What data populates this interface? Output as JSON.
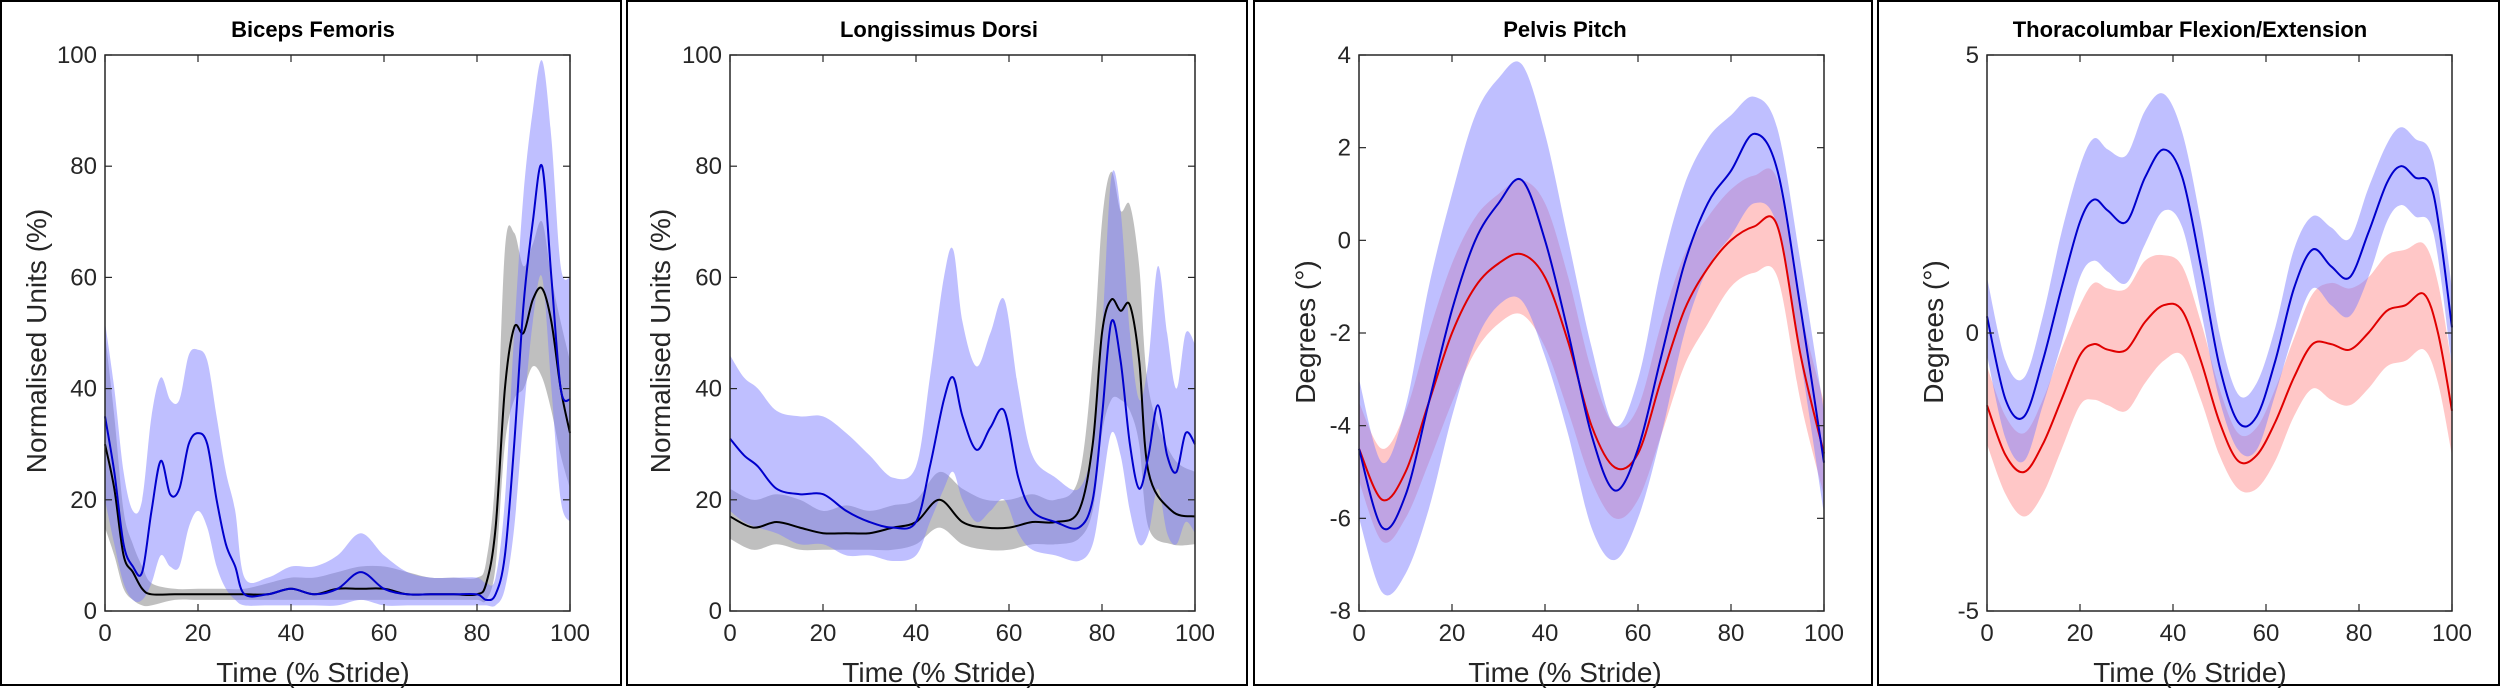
{
  "chart_data": [
    {
      "type": "line",
      "title": "Biceps Femoris",
      "xlabel": "Time (% Stride)",
      "ylabel": "Normalised Units (%)",
      "xlim": [
        0,
        100
      ],
      "ylim": [
        0,
        100
      ],
      "xticks": [
        0,
        20,
        40,
        60,
        80,
        100
      ],
      "yticks": [
        0,
        20,
        40,
        60,
        80,
        100
      ],
      "series": [
        {
          "name": "gray",
          "color": "#000000",
          "band_color": "#808080",
          "x": [
            0,
            2,
            4,
            6,
            8,
            10,
            15,
            20,
            25,
            30,
            35,
            40,
            45,
            50,
            55,
            60,
            65,
            70,
            75,
            80,
            82,
            84,
            86,
            88,
            90,
            92,
            94,
            96,
            98,
            100
          ],
          "mean": [
            30,
            22,
            10,
            7,
            4,
            3,
            3,
            3,
            3,
            3,
            3,
            4,
            3,
            4,
            4,
            4,
            3,
            3,
            3,
            3,
            5,
            15,
            40,
            51,
            50,
            56,
            58,
            52,
            40,
            32
          ],
          "upper": [
            50,
            35,
            18,
            12,
            8,
            5,
            4,
            4,
            4,
            4,
            5,
            6,
            6,
            7,
            8,
            8,
            7,
            6,
            6,
            6,
            9,
            25,
            65,
            68,
            62,
            66,
            70,
            60,
            52,
            45
          ],
          "lower": [
            15,
            10,
            4,
            2,
            1,
            1,
            2,
            2,
            2,
            2,
            2,
            2,
            2,
            2,
            2,
            2,
            2,
            2,
            2,
            2,
            2,
            8,
            30,
            38,
            40,
            44,
            42,
            36,
            28,
            22
          ]
        },
        {
          "name": "blue",
          "color": "#0000cc",
          "band_color": "#8080ff",
          "x": [
            0,
            2,
            4,
            6,
            8,
            10,
            12,
            14,
            16,
            18,
            20,
            22,
            24,
            26,
            28,
            30,
            35,
            40,
            45,
            50,
            55,
            60,
            65,
            70,
            75,
            80,
            82,
            84,
            86,
            88,
            90,
            92,
            94,
            96,
            98,
            100
          ],
          "mean": [
            35,
            25,
            12,
            8,
            7,
            18,
            27,
            21,
            22,
            30,
            32,
            30,
            20,
            12,
            8,
            3,
            3,
            4,
            3,
            4,
            7,
            4,
            3,
            3,
            3,
            3,
            2,
            3,
            10,
            30,
            55,
            70,
            80,
            60,
            40,
            38
          ],
          "upper": [
            52,
            40,
            25,
            18,
            20,
            35,
            42,
            38,
            38,
            46,
            47,
            45,
            35,
            25,
            18,
            6,
            6,
            8,
            8,
            10,
            14,
            10,
            7,
            6,
            6,
            6,
            5,
            6,
            20,
            50,
            75,
            90,
            99,
            85,
            62,
            60
          ],
          "lower": [
            20,
            12,
            5,
            2,
            2,
            5,
            10,
            8,
            8,
            15,
            18,
            15,
            8,
            4,
            2,
            1,
            1,
            1,
            1,
            1,
            2,
            1,
            1,
            1,
            1,
            1,
            1,
            1,
            4,
            15,
            35,
            52,
            60,
            40,
            20,
            16
          ]
        }
      ]
    },
    {
      "type": "line",
      "title": "Longissimus Dorsi",
      "xlabel": "Time (% Stride)",
      "ylabel": "Normalised Units (%)",
      "xlim": [
        0,
        100
      ],
      "ylim": [
        0,
        100
      ],
      "xticks": [
        0,
        20,
        40,
        60,
        80,
        100
      ],
      "yticks": [
        0,
        20,
        40,
        60,
        80,
        100
      ],
      "series": [
        {
          "name": "gray",
          "color": "#000000",
          "band_color": "#808080",
          "x": [
            0,
            5,
            10,
            15,
            20,
            25,
            30,
            35,
            40,
            45,
            50,
            55,
            60,
            65,
            70,
            75,
            78,
            80,
            82,
            84,
            86,
            88,
            90,
            95,
            100
          ],
          "mean": [
            17,
            15,
            16,
            15,
            14,
            14,
            14,
            15,
            16,
            20,
            16,
            15,
            15,
            16,
            16,
            18,
            30,
            50,
            56,
            54,
            55,
            45,
            25,
            18,
            17
          ],
          "upper": [
            22,
            20,
            21,
            20,
            18,
            19,
            18,
            19,
            20,
            25,
            22,
            20,
            20,
            21,
            20,
            24,
            45,
            70,
            79,
            72,
            73,
            62,
            40,
            28,
            25
          ],
          "lower": [
            13,
            11,
            12,
            11,
            11,
            11,
            11,
            11,
            12,
            15,
            12,
            11,
            11,
            12,
            12,
            13,
            18,
            32,
            38,
            38,
            36,
            30,
            15,
            12,
            12
          ]
        },
        {
          "name": "blue",
          "color": "#0000cc",
          "band_color": "#8080ff",
          "x": [
            0,
            3,
            6,
            10,
            15,
            20,
            25,
            30,
            35,
            40,
            43,
            46,
            48,
            50,
            53,
            56,
            59,
            62,
            65,
            70,
            75,
            78,
            80,
            82,
            84,
            86,
            88,
            90,
            92,
            94,
            96,
            98,
            100
          ],
          "mean": [
            31,
            28,
            26,
            22,
            21,
            21,
            18,
            16,
            15,
            16,
            26,
            38,
            42,
            35,
            29,
            33,
            36,
            24,
            18,
            16,
            15,
            20,
            35,
            52,
            45,
            30,
            22,
            28,
            37,
            28,
            25,
            32,
            30
          ],
          "upper": [
            46,
            42,
            40,
            36,
            35,
            35,
            32,
            28,
            24,
            26,
            42,
            60,
            65,
            52,
            44,
            50,
            56,
            40,
            28,
            24,
            22,
            30,
            50,
            78,
            72,
            50,
            38,
            45,
            62,
            50,
            40,
            50,
            48
          ],
          "lower": [
            18,
            16,
            15,
            14,
            12,
            12,
            10,
            10,
            9,
            10,
            16,
            22,
            25,
            20,
            16,
            18,
            20,
            14,
            11,
            10,
            9,
            12,
            22,
            32,
            28,
            18,
            12,
            14,
            22,
            14,
            12,
            16,
            14
          ]
        }
      ]
    },
    {
      "type": "line",
      "title": "Pelvis Pitch",
      "xlabel": "Time (% Stride)",
      "ylabel": "Degrees (°)",
      "xlim": [
        0,
        100
      ],
      "ylim": [
        -8,
        4
      ],
      "xticks": [
        0,
        20,
        40,
        60,
        80,
        100
      ],
      "yticks": [
        -8,
        -6,
        -4,
        -2,
        0,
        2,
        4
      ],
      "series": [
        {
          "name": "red",
          "color": "#e00000",
          "band_color": "#ff9090",
          "x": [
            0,
            5,
            10,
            15,
            20,
            25,
            30,
            35,
            40,
            45,
            50,
            55,
            60,
            65,
            70,
            75,
            80,
            85,
            90,
            95,
            100
          ],
          "mean": [
            -4.5,
            -5.6,
            -5.0,
            -3.5,
            -2.0,
            -1.0,
            -0.5,
            -0.3,
            -0.8,
            -2.2,
            -4.0,
            -4.9,
            -4.6,
            -3.0,
            -1.5,
            -0.6,
            0.0,
            0.3,
            0.3,
            -2.5,
            -4.6
          ],
          "upper": [
            -3.5,
            -4.5,
            -3.7,
            -2.0,
            -0.5,
            0.5,
            1.0,
            1.3,
            0.8,
            -0.8,
            -2.8,
            -4.0,
            -3.6,
            -1.8,
            -0.3,
            0.5,
            1.1,
            1.4,
            1.3,
            -1.5,
            -3.5
          ],
          "lower": [
            -5.2,
            -6.5,
            -6.0,
            -4.8,
            -3.5,
            -2.4,
            -1.8,
            -1.6,
            -2.3,
            -3.7,
            -5.2,
            -6.0,
            -5.6,
            -4.2,
            -2.7,
            -1.8,
            -1.0,
            -0.7,
            -0.8,
            -3.5,
            -5.5
          ]
        },
        {
          "name": "blue",
          "color": "#0000cc",
          "band_color": "#8080ff",
          "x": [
            0,
            5,
            10,
            15,
            20,
            25,
            30,
            35,
            40,
            45,
            50,
            55,
            60,
            65,
            70,
            75,
            80,
            85,
            90,
            95,
            100
          ],
          "mean": [
            -4.5,
            -6.2,
            -5.5,
            -3.5,
            -1.5,
            0.0,
            0.8,
            1.3,
            0.0,
            -2.0,
            -4.2,
            -5.4,
            -4.5,
            -2.5,
            -0.5,
            0.8,
            1.5,
            2.3,
            1.5,
            -1.5,
            -4.8
          ],
          "upper": [
            -3.0,
            -4.8,
            -3.6,
            -1.0,
            1.0,
            2.7,
            3.5,
            3.8,
            2.3,
            0.0,
            -2.3,
            -4.0,
            -3.0,
            -0.6,
            1.2,
            2.2,
            2.7,
            3.1,
            2.4,
            -0.5,
            -3.7
          ],
          "lower": [
            -6.0,
            -7.6,
            -7.2,
            -5.8,
            -3.8,
            -2.2,
            -1.4,
            -1.3,
            -2.5,
            -4.2,
            -6.2,
            -6.9,
            -6.0,
            -4.2,
            -2.0,
            -0.6,
            0.1,
            0.8,
            0.3,
            -2.6,
            -5.9
          ]
        }
      ]
    },
    {
      "type": "line",
      "title": "Thoracolumbar Flexion/Extension",
      "xlabel": "Time (% Stride)",
      "ylabel": "Degrees (°)",
      "xlim": [
        0,
        100
      ],
      "ylim": [
        -5,
        5
      ],
      "xticks": [
        0,
        20,
        40,
        60,
        80,
        100
      ],
      "yticks": [
        -5,
        0,
        5
      ],
      "series": [
        {
          "name": "red",
          "color": "#e00000",
          "band_color": "#ff9090",
          "x": [
            0,
            4,
            8,
            12,
            16,
            20,
            23,
            26,
            30,
            34,
            38,
            42,
            46,
            50,
            54,
            58,
            62,
            66,
            70,
            74,
            78,
            82,
            86,
            90,
            94,
            97,
            100
          ],
          "mean": [
            -1.3,
            -2.2,
            -2.5,
            -2.0,
            -1.2,
            -0.4,
            -0.2,
            -0.3,
            -0.3,
            0.2,
            0.5,
            0.4,
            -0.5,
            -1.6,
            -2.3,
            -2.2,
            -1.6,
            -0.8,
            -0.2,
            -0.2,
            -0.3,
            0.0,
            0.4,
            0.5,
            0.7,
            0.0,
            -1.4
          ],
          "upper": [
            -0.6,
            -1.5,
            -1.8,
            -1.2,
            -0.3,
            0.5,
            0.9,
            0.8,
            0.8,
            1.3,
            1.4,
            1.2,
            0.2,
            -1.0,
            -1.8,
            -1.7,
            -1.0,
            -0.1,
            0.7,
            0.9,
            0.8,
            1.0,
            1.4,
            1.5,
            1.6,
            0.9,
            -0.6
          ],
          "lower": [
            -2.0,
            -2.9,
            -3.3,
            -2.9,
            -2.1,
            -1.3,
            -1.2,
            -1.3,
            -1.4,
            -0.9,
            -0.5,
            -0.4,
            -1.2,
            -2.2,
            -2.8,
            -2.8,
            -2.3,
            -1.5,
            -1.0,
            -1.2,
            -1.3,
            -1.0,
            -0.6,
            -0.5,
            -0.3,
            -0.9,
            -2.2
          ]
        },
        {
          "name": "blue",
          "color": "#0000cc",
          "band_color": "#8080ff",
          "x": [
            0,
            4,
            8,
            12,
            16,
            20,
            23,
            26,
            30,
            34,
            38,
            42,
            46,
            50,
            54,
            58,
            62,
            66,
            70,
            74,
            78,
            82,
            86,
            89,
            92,
            96,
            100
          ],
          "mean": [
            0.3,
            -1.2,
            -1.5,
            -0.5,
            0.8,
            2.0,
            2.4,
            2.2,
            2.0,
            2.8,
            3.3,
            2.8,
            1.2,
            -0.6,
            -1.6,
            -1.5,
            -0.5,
            0.8,
            1.5,
            1.2,
            1.0,
            1.8,
            2.7,
            3.0,
            2.8,
            2.5,
            0.1
          ],
          "upper": [
            1.0,
            -0.5,
            -0.8,
            0.3,
            1.8,
            3.0,
            3.5,
            3.3,
            3.2,
            4.0,
            4.3,
            3.6,
            2.0,
            0.0,
            -1.1,
            -0.9,
            0.1,
            1.5,
            2.1,
            1.9,
            1.7,
            2.6,
            3.4,
            3.7,
            3.5,
            3.1,
            0.8
          ],
          "lower": [
            -0.4,
            -1.9,
            -2.3,
            -1.3,
            -0.2,
            1.0,
            1.3,
            1.1,
            0.9,
            1.6,
            2.2,
            1.9,
            0.4,
            -1.2,
            -2.1,
            -2.1,
            -1.1,
            0.0,
            0.8,
            0.5,
            0.3,
            1.0,
            2.0,
            2.3,
            2.1,
            1.8,
            -0.6
          ]
        }
      ]
    }
  ]
}
